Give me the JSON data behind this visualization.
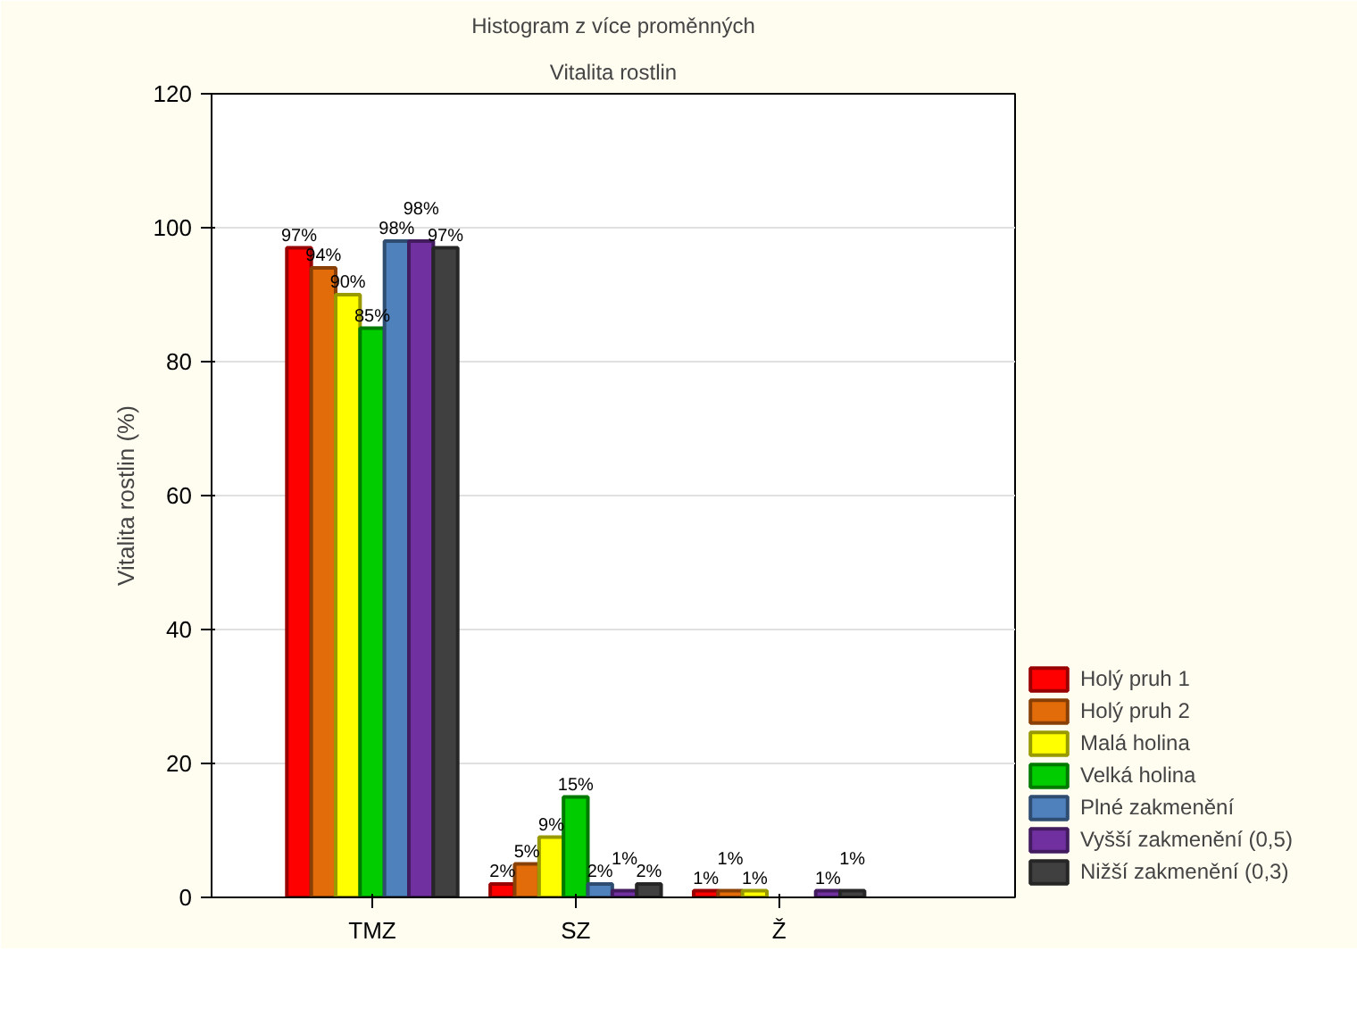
{
  "chart_data": {
    "type": "bar",
    "title": "Histogram z více proměnných",
    "subtitle": "Vitalita rostlin",
    "ylabel": "Vitalita rostlin (%)",
    "categories": [
      "TMZ",
      "SZ",
      "Ž"
    ],
    "series": [
      {
        "name": "Holý pruh 1",
        "color": "#ff0000",
        "values": [
          97,
          2,
          1
        ],
        "value_labels": [
          "97%",
          "2%",
          "1%"
        ]
      },
      {
        "name": "Holý pruh 2",
        "color": "#e36c0a",
        "values": [
          94,
          5,
          1
        ],
        "value_labels": [
          "94%",
          "5%",
          "1%"
        ]
      },
      {
        "name": "Malá holina",
        "color": "#ffff00",
        "values": [
          90,
          9,
          1
        ],
        "value_labels": [
          "90%",
          "9%",
          "1%"
        ]
      },
      {
        "name": "Velká holina",
        "color": "#00cc00",
        "values": [
          85,
          15,
          null
        ],
        "value_labels": [
          "85%",
          "15%",
          null
        ]
      },
      {
        "name": "Plné zakmenění",
        "color": "#4f81bd",
        "values": [
          98,
          2,
          null
        ],
        "value_labels": [
          "98%",
          "2%",
          null
        ]
      },
      {
        "name": "Vyšší zakmenění (0,5)",
        "color": "#7030a0",
        "values": [
          98,
          1,
          1
        ],
        "value_labels": [
          "98%",
          "1%",
          "1%"
        ]
      },
      {
        "name": "Nižší zakmenění (0,3)",
        "color": "#404040",
        "values": [
          97,
          2,
          1
        ],
        "value_labels": [
          "97%",
          "2%",
          "1%"
        ]
      }
    ],
    "ylim": [
      0,
      120
    ],
    "yticks": [
      0,
      20,
      40,
      60,
      80,
      100,
      120
    ],
    "grid": "y",
    "legend": "bottom right"
  }
}
